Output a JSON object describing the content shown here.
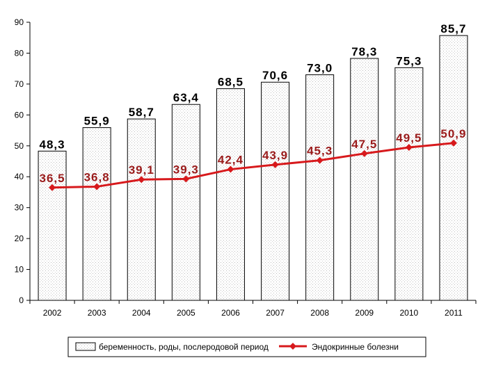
{
  "chart_data": {
    "type": "bar",
    "categories": [
      "2002",
      "2003",
      "2004",
      "2005",
      "2006",
      "2007",
      "2008",
      "2009",
      "2010",
      "2011"
    ],
    "series": [
      {
        "name": "беременность, роды, послеродовой период",
        "type": "bar",
        "values": [
          48.3,
          55.9,
          58.7,
          63.4,
          68.5,
          70.6,
          73.0,
          78.3,
          75.3,
          85.7
        ],
        "labels": [
          "48,3",
          "55,9",
          "58,7",
          "63,4",
          "68,5",
          "70,6",
          "73,0",
          "78,3",
          "75,3",
          "85,7"
        ],
        "color": "#ffffff"
      },
      {
        "name": "Эндокринные болезни",
        "type": "line",
        "values": [
          36.5,
          36.8,
          39.1,
          39.3,
          42.4,
          43.9,
          45.3,
          47.5,
          49.5,
          50.9
        ],
        "labels": [
          "36,5",
          "36,8",
          "39,1",
          "39,3",
          "42,4",
          "43,9",
          "45,3",
          "47,5",
          "49,5",
          "50,9"
        ],
        "color": "#d7191c",
        "label_color": "#9a1b1b"
      }
    ],
    "yticks": [
      "0",
      "10",
      "20",
      "30",
      "40",
      "50",
      "60",
      "70",
      "80",
      "90"
    ],
    "ylim": [
      0,
      90
    ],
    "grid": false,
    "legend": "bottom"
  }
}
